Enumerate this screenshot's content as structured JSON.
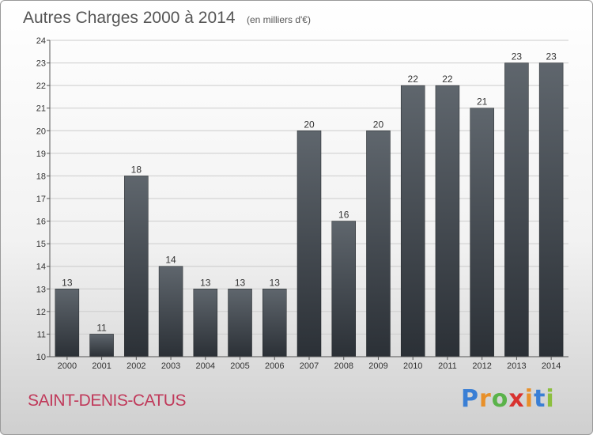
{
  "title": "Autres Charges 2000 à 2014",
  "unit_note": "(en milliers d'€)",
  "commune": "SAINT-DENIS-CATUS",
  "brand": {
    "letters": [
      "P",
      "r",
      "o",
      "x",
      "i",
      "t",
      "i"
    ],
    "colors": [
      "#3a7fd5",
      "#e8902a",
      "#5ab34a",
      "#d8322f",
      "#e8902a",
      "#3a7fd5",
      "#8cbf3f"
    ]
  },
  "colors": {
    "bar_top": "#5f666d",
    "bar_bottom": "#2b3036",
    "grid": "#cccccc"
  },
  "chart_data": {
    "type": "bar",
    "categories": [
      "2000",
      "2001",
      "2002",
      "2003",
      "2004",
      "2005",
      "2006",
      "2007",
      "2008",
      "2009",
      "2010",
      "2011",
      "2012",
      "2013",
      "2014"
    ],
    "values": [
      13,
      11,
      18,
      14,
      13,
      13,
      13,
      20,
      16,
      20,
      22,
      22,
      21,
      23,
      23
    ],
    "data_labels": [
      "13",
      "11",
      "18",
      "14",
      "13",
      "13",
      "13",
      "20",
      "16",
      "20",
      "22",
      "22",
      "21",
      "23",
      "23"
    ],
    "yticks": [
      "10",
      "11",
      "12",
      "13",
      "14",
      "15",
      "16",
      "17",
      "18",
      "19",
      "20",
      "21",
      "22",
      "23",
      "24"
    ],
    "ylim": [
      10,
      24
    ],
    "grid": true
  }
}
